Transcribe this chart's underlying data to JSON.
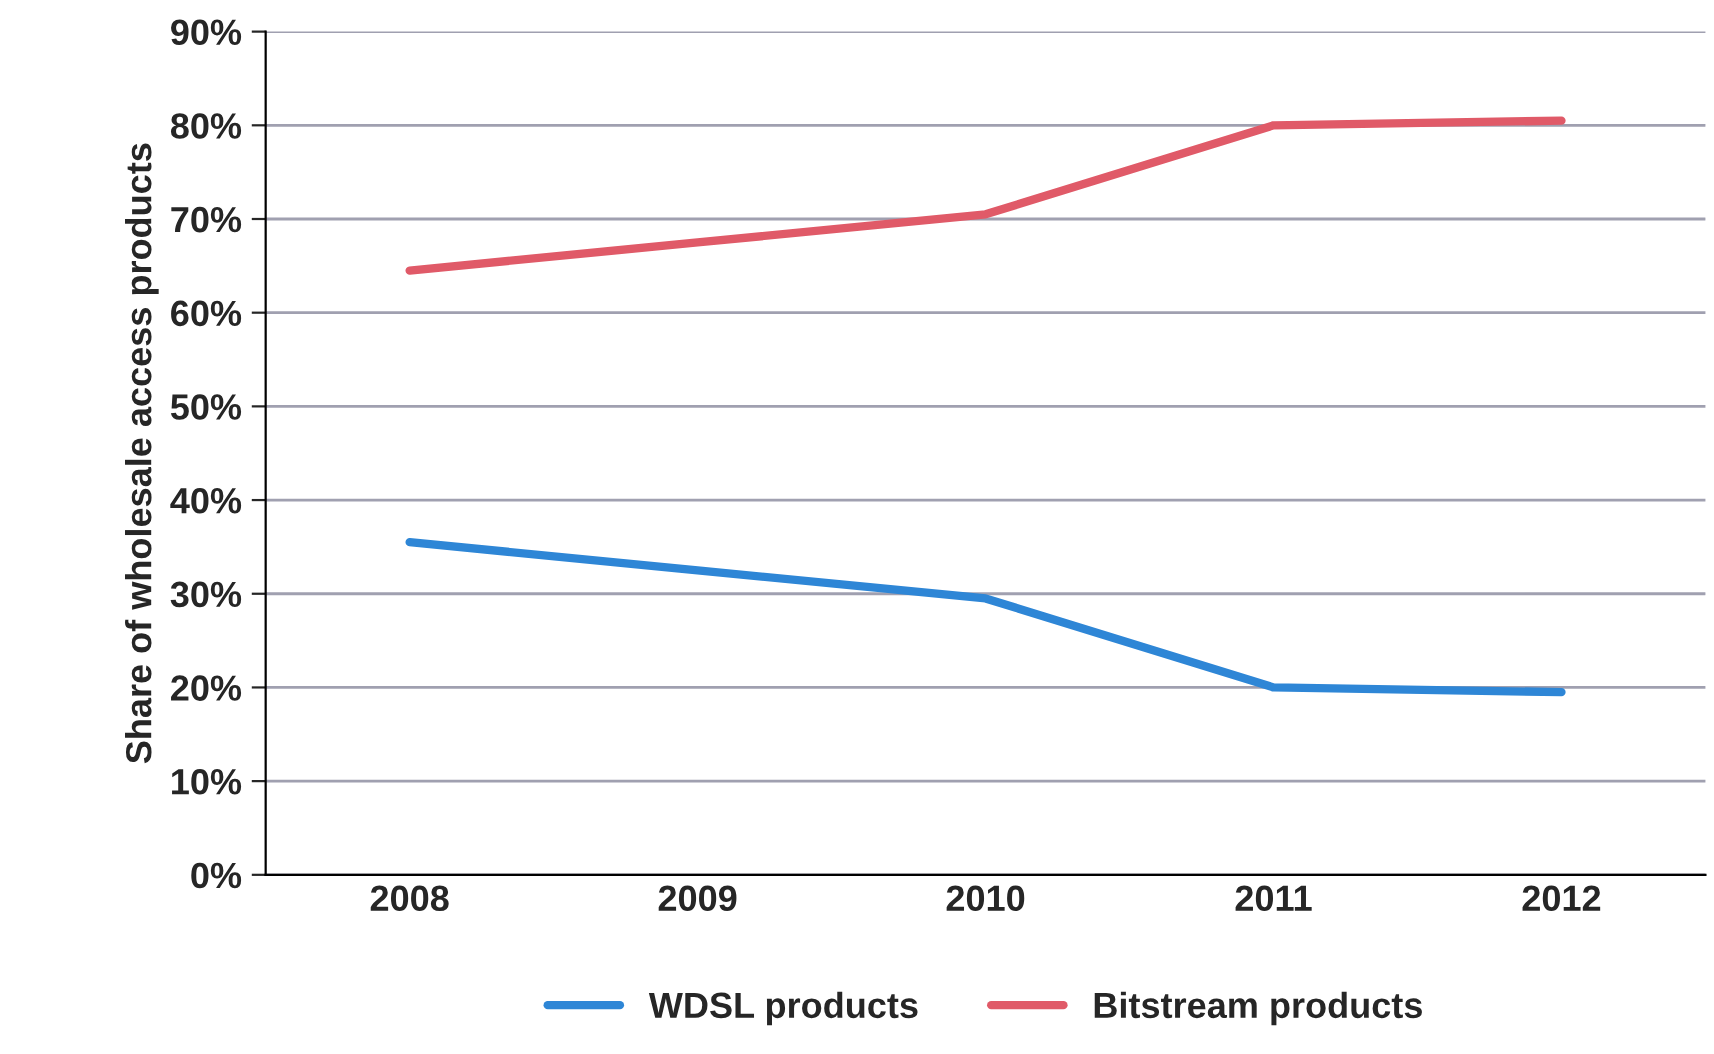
{
  "chart_data": {
    "type": "line",
    "ylabel": "Share of wholesale access products",
    "categories": [
      "2008",
      "2009",
      "2010",
      "2011",
      "2012"
    ],
    "series": [
      {
        "name": "WDSL products",
        "color": "#2e86d6",
        "values": [
          35.5,
          32.5,
          29.5,
          20,
          19.5
        ]
      },
      {
        "name": "Bitstream products",
        "color": "#e05a68",
        "values": [
          64.5,
          67.5,
          70.5,
          80,
          80.5
        ]
      }
    ],
    "ylim": [
      0,
      90
    ],
    "yticks": [
      {
        "value": 0,
        "label": "0%"
      },
      {
        "value": 10,
        "label": "10%"
      },
      {
        "value": 20,
        "label": "20%"
      },
      {
        "value": 30,
        "label": "30%"
      },
      {
        "value": 40,
        "label": "40%"
      },
      {
        "value": 50,
        "label": "50%"
      },
      {
        "value": 60,
        "label": "60%"
      },
      {
        "value": 70,
        "label": "70%"
      },
      {
        "value": 80,
        "label": "80%"
      },
      {
        "value": 90,
        "label": "90%"
      }
    ],
    "grid": "y",
    "legend": "bottom",
    "marker": "none",
    "line_style": "solid"
  }
}
